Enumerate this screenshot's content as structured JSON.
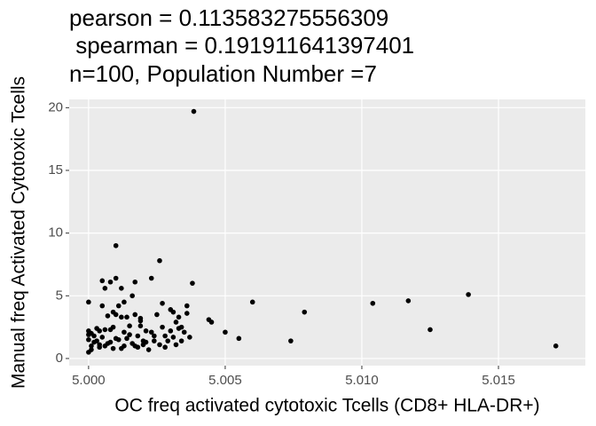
{
  "chart_data": {
    "type": "scatter",
    "title_lines": [
      "pearson = 0.113583275556309",
      " spearman = 0.191911641397401",
      "n=100, Population Number =7"
    ],
    "xlabel": "OC freq activated cytotoxic Tcells (CD8+ HLA-DR+)",
    "ylabel": "Manual freq Activated Cytotoxic Tcells",
    "color": "#000000",
    "grid": true,
    "xlim": [
      4.99929,
      5.01818
    ],
    "ylim": [
      -0.57,
      20.66
    ],
    "xticks": [
      {
        "value": 5.0,
        "label": "5.000"
      },
      {
        "value": 5.005,
        "label": "5.005"
      },
      {
        "value": 5.01,
        "label": "5.010"
      },
      {
        "value": 5.015,
        "label": "5.015"
      }
    ],
    "yticks": [
      0,
      5,
      10,
      15,
      20
    ],
    "x": [
      5.00385,
      5.001,
      5.0026,
      5.0038,
      5.006,
      5.0079,
      5.0104,
      5.0117,
      5.0139,
      5.0171,
      5.0125,
      5.0074,
      5.0055,
      5.005,
      5.0044,
      5.0045,
      5.0,
      5.0,
      5.0,
      5.0,
      5.0,
      5.0001,
      5.0001,
      5.0002,
      5.0003,
      5.0004,
      5.0004,
      5.0005,
      5.0005,
      5.0006,
      5.0006,
      5.0007,
      5.0007,
      5.0008,
      5.0008,
      5.0009,
      5.0009,
      5.001,
      5.001,
      5.0011,
      5.0011,
      5.0012,
      5.0012,
      5.0013,
      5.0013,
      5.0014,
      5.0014,
      5.0015,
      5.0016,
      5.0016,
      5.0017,
      5.0017,
      5.0018,
      5.0018,
      5.0019,
      5.0019,
      5.002,
      5.002,
      5.0021,
      5.0022,
      5.0023,
      5.0023,
      5.0024,
      5.0025,
      5.0026,
      5.0027,
      5.0027,
      5.0028,
      5.0029,
      5.003,
      5.003,
      5.0031,
      5.0031,
      5.0032,
      5.0033,
      5.0033,
      5.0034,
      5.0035,
      5.0036,
      5.0036,
      5.0037,
      5.0012,
      5.0019,
      5.0003,
      5.0002,
      5.0006,
      5.0015,
      5.0021,
      5.0008,
      5.0004,
      5.0028,
      5.0034,
      5.0001,
      5.001,
      5.0017,
      5.0024,
      5.0005,
      5.0013,
      5.0009,
      5.0032
    ],
    "values": [
      19.7,
      9.0,
      7.8,
      6.0,
      4.5,
      3.7,
      4.4,
      4.6,
      5.1,
      1.0,
      2.3,
      1.4,
      1.6,
      2.1,
      3.1,
      2.9,
      4.5,
      2.2,
      1.9,
      1.5,
      0.5,
      1.0,
      2.0,
      1.3,
      2.4,
      2.2,
      1.1,
      4.2,
      6.2,
      5.6,
      2.3,
      1.2,
      3.4,
      6.1,
      1.3,
      2.5,
      0.8,
      6.4,
      3.5,
      1.5,
      4.2,
      5.6,
      3.3,
      2.1,
      1.0,
      3.3,
      1.6,
      2.6,
      5.0,
      1.2,
      6.1,
      3.5,
      1.8,
      0.9,
      3.0,
      2.6,
      1.4,
      1.1,
      2.2,
      0.7,
      6.4,
      2.1,
      1.4,
      3.5,
      1.1,
      2.5,
      4.4,
      1.8,
      1.4,
      3.9,
      2.2,
      3.7,
      1.7,
      2.9,
      3.3,
      2.4,
      1.4,
      2.1,
      4.2,
      3.6,
      1.7,
      0.8,
      3.2,
      1.4,
      1.8,
      1.0,
      1.9,
      1.3,
      2.3,
      0.9,
      0.9,
      2.5,
      0.7,
      1.6,
      1.0,
      1.8,
      1.7,
      4.5,
      3.7,
      1.1
    ]
  }
}
